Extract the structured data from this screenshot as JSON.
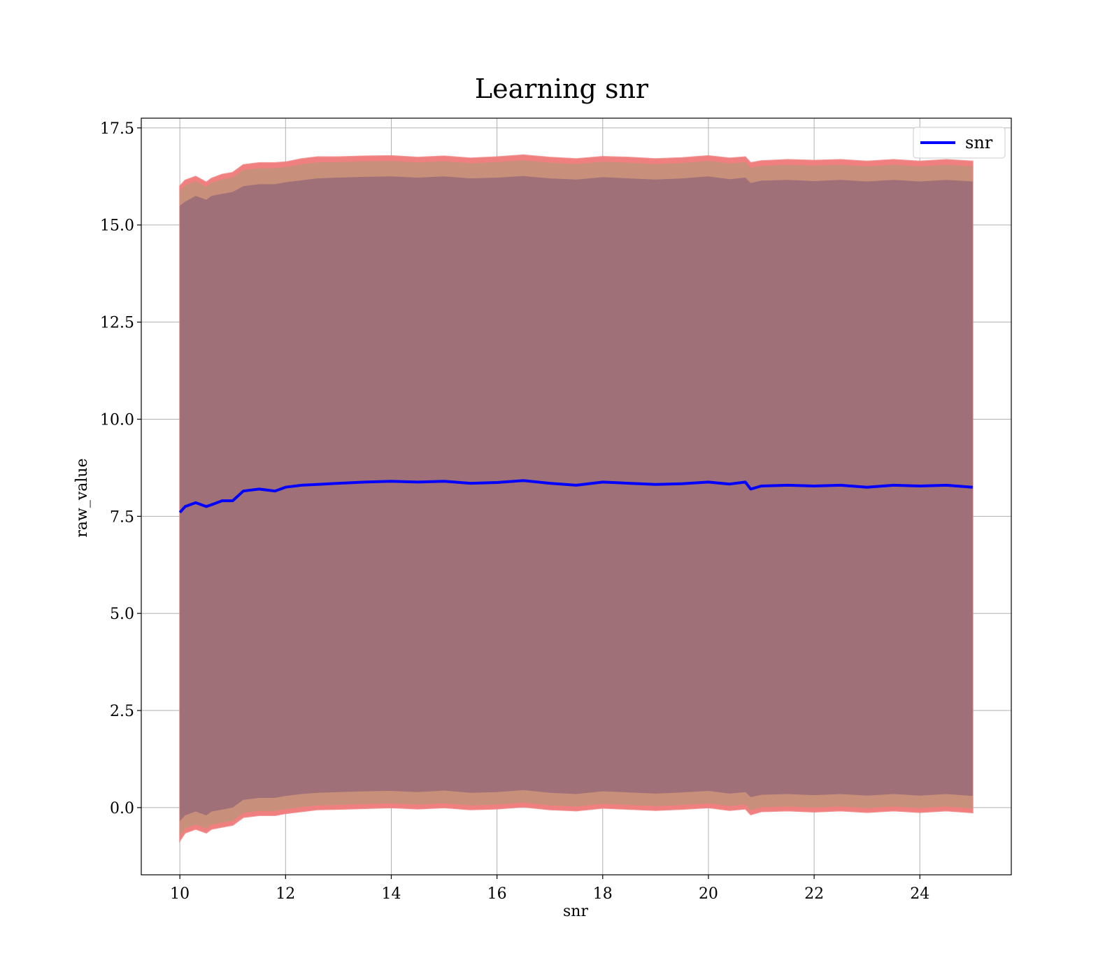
{
  "chart_data": {
    "type": "line",
    "title": "Learning snr",
    "xlabel": "snr",
    "ylabel": "raw_value",
    "xlim": [
      9.27,
      25.73
    ],
    "ylim": [
      -1.73,
      17.75
    ],
    "xticks": [
      10,
      12,
      14,
      16,
      18,
      20,
      22,
      24
    ],
    "yticks": [
      0.0,
      2.5,
      5.0,
      7.5,
      10.0,
      12.5,
      15.0,
      17.5
    ],
    "xtick_labels": [
      "10",
      "12",
      "14",
      "16",
      "18",
      "20",
      "22",
      "24"
    ],
    "ytick_labels": [
      "0.0",
      "2.5",
      "5.0",
      "7.5",
      "10.0",
      "12.5",
      "15.0",
      "17.5"
    ],
    "grid": true,
    "legend": {
      "position": "upper right",
      "entries": [
        {
          "name": "snr",
          "color": "#0000ff"
        }
      ]
    },
    "colors": {
      "line": "#0000ff",
      "band_outer": "#f08080",
      "band_mid": "#c8907a",
      "band_inner": "#a07078",
      "grid": "#b0b0b0"
    },
    "series": [
      {
        "name": "snr",
        "x": [
          10.0,
          10.1,
          10.3,
          10.5,
          10.6,
          10.8,
          11.0,
          11.2,
          11.5,
          11.8,
          12.0,
          12.3,
          12.6,
          13.0,
          13.5,
          14.0,
          14.5,
          15.0,
          15.5,
          16.0,
          16.5,
          17.0,
          17.5,
          18.0,
          18.5,
          19.0,
          19.5,
          20.0,
          20.4,
          20.7,
          20.8,
          21.0,
          21.5,
          22.0,
          22.5,
          23.0,
          23.5,
          24.0,
          24.5,
          25.0
        ],
        "y": [
          7.6,
          7.75,
          7.85,
          7.75,
          7.8,
          7.9,
          7.9,
          8.15,
          8.2,
          8.15,
          8.25,
          8.3,
          8.32,
          8.35,
          8.38,
          8.4,
          8.38,
          8.4,
          8.35,
          8.37,
          8.42,
          8.35,
          8.3,
          8.38,
          8.35,
          8.32,
          8.34,
          8.38,
          8.33,
          8.38,
          8.2,
          8.28,
          8.3,
          8.28,
          8.3,
          8.25,
          8.3,
          8.28,
          8.3,
          8.25
        ],
        "outer_upper": [
          16.0,
          16.15,
          16.25,
          16.1,
          16.2,
          16.3,
          16.35,
          16.55,
          16.6,
          16.6,
          16.62,
          16.7,
          16.75,
          16.75,
          16.77,
          16.78,
          16.74,
          16.77,
          16.72,
          16.75,
          16.8,
          16.74,
          16.7,
          16.76,
          16.74,
          16.7,
          16.73,
          16.78,
          16.72,
          16.75,
          16.6,
          16.65,
          16.68,
          16.66,
          16.68,
          16.64,
          16.68,
          16.64,
          16.68,
          16.64
        ],
        "inner_upper": [
          15.5,
          15.6,
          15.75,
          15.65,
          15.75,
          15.8,
          15.85,
          16.0,
          16.05,
          16.05,
          16.1,
          16.15,
          16.2,
          16.22,
          16.24,
          16.25,
          16.22,
          16.25,
          16.2,
          16.22,
          16.26,
          16.2,
          16.17,
          16.23,
          16.2,
          16.17,
          16.2,
          16.25,
          16.18,
          16.22,
          16.08,
          16.14,
          16.16,
          16.13,
          16.16,
          16.12,
          16.16,
          16.12,
          16.16,
          16.12
        ],
        "inner_lower": [
          -0.35,
          -0.2,
          -0.1,
          -0.2,
          -0.1,
          -0.05,
          0.0,
          0.2,
          0.25,
          0.25,
          0.3,
          0.35,
          0.38,
          0.4,
          0.42,
          0.43,
          0.4,
          0.44,
          0.38,
          0.4,
          0.45,
          0.38,
          0.35,
          0.42,
          0.39,
          0.36,
          0.39,
          0.43,
          0.36,
          0.4,
          0.27,
          0.33,
          0.35,
          0.32,
          0.35,
          0.31,
          0.35,
          0.31,
          0.35,
          0.3
        ],
        "outer_lower": [
          -0.85,
          -0.65,
          -0.55,
          -0.65,
          -0.55,
          -0.5,
          -0.45,
          -0.25,
          -0.2,
          -0.2,
          -0.15,
          -0.1,
          -0.05,
          -0.04,
          -0.02,
          0.0,
          -0.03,
          0.0,
          -0.05,
          -0.03,
          0.02,
          -0.05,
          -0.08,
          -0.01,
          -0.04,
          -0.07,
          -0.04,
          0.0,
          -0.07,
          -0.03,
          -0.18,
          -0.1,
          -0.08,
          -0.11,
          -0.08,
          -0.12,
          -0.08,
          -0.12,
          -0.08,
          -0.13
        ]
      }
    ]
  }
}
